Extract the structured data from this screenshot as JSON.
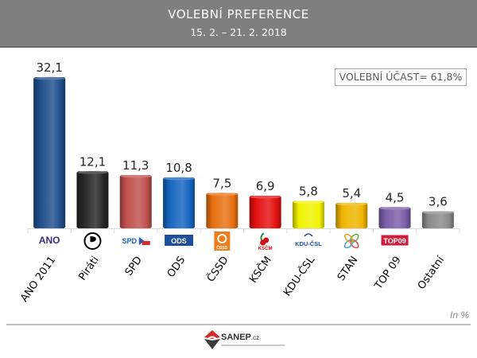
{
  "header": {
    "title": "VOLEBNÍ PREFERENCE",
    "subtitle": "15. 2. – 21. 2. 2018"
  },
  "turnout_label": "VOLEBNÍ ÚČAST= 61,8%",
  "unit_label": "In %",
  "footer": {
    "logo_name": "SANEP",
    "logo_suffix": ".cz"
  },
  "chart_data": {
    "type": "bar",
    "title": "VOLEBNÍ PREFERENCE",
    "subtitle": "15. 2. – 21. 2. 2018",
    "xlabel": "",
    "ylabel": "In %",
    "ylim": [
      0,
      32.1
    ],
    "grid": false,
    "categories": [
      "ANO 2011",
      "Piráti",
      "SPD",
      "ODS",
      "ČSSD",
      "KSČM",
      "KDU-ČSL",
      "STAN",
      "TOP 09",
      "Ostatní"
    ],
    "values": [
      32.1,
      12.1,
      11.3,
      10.8,
      7.5,
      6.9,
      5.8,
      5.4,
      4.5,
      3.6
    ],
    "value_labels": [
      "32,1",
      "12,1",
      "11,3",
      "10,8",
      "7,5",
      "6,9",
      "5,8",
      "5,4",
      "4,5",
      "3,6"
    ],
    "colors": [
      "#1f4e8c",
      "#262626",
      "#c0504d",
      "#1565c0",
      "#e87010",
      "#e41010",
      "#f2f200",
      "#f0b400",
      "#7b5ea7",
      "#8a8a8a"
    ],
    "logos": [
      {
        "text": "ANO",
        "color": "#3a2a7a",
        "bg": "#ffffff"
      },
      {
        "text": "",
        "color": "#000000",
        "bg": "#ffffff"
      },
      {
        "text": "SPD",
        "color": "#1f5fb0",
        "bg": "#ffffff"
      },
      {
        "text": "ODS",
        "color": "#ffffff",
        "bg": "#1d4f9c"
      },
      {
        "text": "ČSSD",
        "color": "#ffffff",
        "bg": "#f07d1a"
      },
      {
        "text": "KSČM",
        "color": "#d01010",
        "bg": "#ffffff"
      },
      {
        "text": "KDU-ČSL",
        "color": "#1a4a9a",
        "bg": "#ffffff"
      },
      {
        "text": "",
        "color": "#888888",
        "bg": "#ffffff"
      },
      {
        "text": "TOP09",
        "color": "#ffffff",
        "bg": "#d01c3a"
      },
      {
        "text": "",
        "color": "#ffffff",
        "bg": "#ffffff"
      }
    ]
  }
}
